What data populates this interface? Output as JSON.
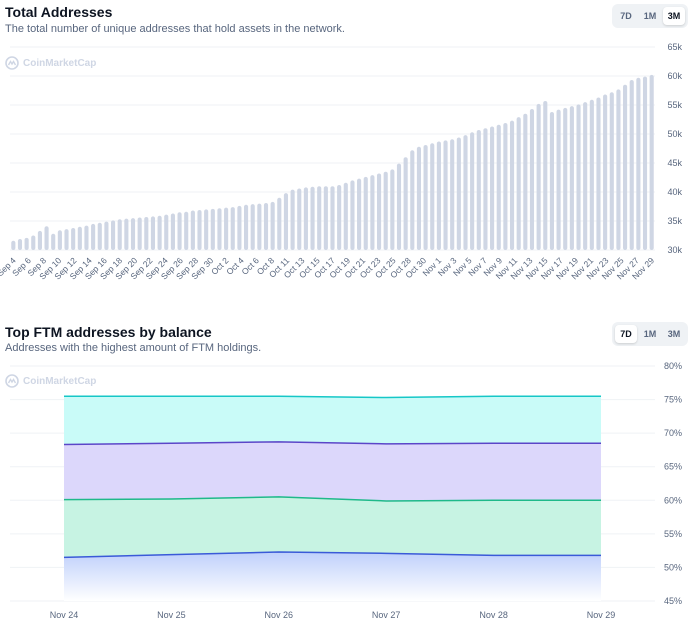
{
  "colors": {
    "bar": "#cfd6e4",
    "grid": "#eff2f5",
    "axis_text": "#58667e",
    "band_top": "#c9fbf8",
    "band_top_line": "#16c7c7",
    "band_2": "#dcd7fb",
    "band_2_line": "#5b46c8",
    "band_3": "#c7f3e3",
    "band_3_line": "#1fb98a",
    "band_4": "#bfd0fb",
    "band_4_line": "#3a5ad8"
  },
  "watermark": "CoinMarketCap",
  "charts": {
    "total_addresses": {
      "title": "Total Addresses",
      "subtitle": "The total number of unique addresses that hold assets in the network.",
      "ranges": [
        "7D",
        "1M",
        "3M"
      ],
      "active_range": "3M"
    },
    "top_ftm": {
      "title": "Top FTM addresses by balance",
      "subtitle": "Addresses with the highest amount of FTM holdings.",
      "ranges": [
        "7D",
        "1M",
        "3M"
      ],
      "active_range": "7D"
    }
  },
  "chart_data": [
    {
      "type": "bar",
      "title": "Total Addresses",
      "ylim": [
        30000,
        65000
      ],
      "y_ticks": [
        "30k",
        "35k",
        "40k",
        "45k",
        "50k",
        "55k",
        "60k",
        "65k"
      ],
      "x_tick_labels": [
        "Sep 4",
        "Sep 6",
        "Sep 8",
        "Sep 10",
        "Sep 12",
        "Sep 14",
        "Sep 16",
        "Sep 18",
        "Sep 20",
        "Sep 22",
        "Sep 24",
        "Sep 26",
        "Sep 28",
        "Sep 30",
        "Oct 2",
        "Oct 4",
        "Oct 6",
        "Oct 8",
        "Oct 11",
        "Oct 13",
        "Oct 15",
        "Oct 17",
        "Oct 19",
        "Oct 21",
        "Oct 23",
        "Oct 25",
        "Oct 28",
        "Oct 30",
        "Nov 1",
        "Nov 3",
        "Nov 5",
        "Nov 7",
        "Nov 9",
        "Nov 11",
        "Nov 13",
        "Nov 15",
        "Nov 17",
        "Nov 19",
        "Nov 21",
        "Nov 23",
        "Nov 25",
        "Nov 27",
        "Nov 29"
      ],
      "values": [
        31600,
        31900,
        32100,
        32500,
        33300,
        34100,
        32800,
        33400,
        33600,
        33800,
        34000,
        34200,
        34500,
        34700,
        34900,
        35100,
        35300,
        35400,
        35500,
        35600,
        35700,
        35800,
        35900,
        36100,
        36300,
        36500,
        36600,
        36800,
        36900,
        37000,
        37100,
        37200,
        37300,
        37400,
        37600,
        37800,
        37900,
        38000,
        38100,
        38300,
        39000,
        39800,
        40400,
        40600,
        40800,
        40900,
        41000,
        41000,
        41000,
        41200,
        41600,
        42000,
        42300,
        42600,
        42900,
        43200,
        43500,
        43900,
        44900,
        46000,
        47200,
        47800,
        48100,
        48400,
        48700,
        48900,
        49100,
        49400,
        49800,
        50300,
        50700,
        51000,
        51300,
        51600,
        51900,
        52300,
        52900,
        53500,
        54300,
        55200,
        55700,
        53800,
        54200,
        54500,
        54800,
        55100,
        55500,
        55900,
        56300,
        56800,
        57200,
        57700,
        58500,
        59300,
        59700,
        59900,
        60200
      ]
    },
    {
      "type": "area",
      "title": "Top FTM addresses by balance",
      "x": [
        "Nov 24",
        "Nov 25",
        "Nov 26",
        "Nov 27",
        "Nov 28",
        "Nov 29"
      ],
      "ylim": [
        45,
        80
      ],
      "y_ticks": [
        "45%",
        "50%",
        "55%",
        "60%",
        "65%",
        "70%",
        "75%",
        "80%"
      ],
      "series": [
        {
          "values": [
            75.5,
            75.5,
            75.5,
            75.3,
            75.5,
            75.5
          ]
        },
        {
          "values": [
            68.3,
            68.5,
            68.7,
            68.4,
            68.5,
            68.5
          ]
        },
        {
          "values": [
            60.1,
            60.2,
            60.5,
            59.9,
            60.0,
            60.0
          ]
        },
        {
          "values": [
            51.5,
            51.9,
            52.3,
            52.1,
            51.8,
            51.8
          ]
        }
      ]
    }
  ]
}
